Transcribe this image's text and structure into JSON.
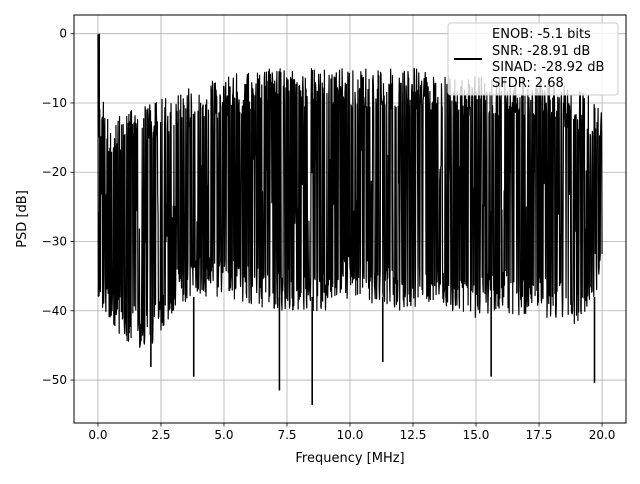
{
  "chart_data": {
    "type": "line",
    "xlabel": "Frequency [MHz]",
    "ylabel": "PSD [dB]",
    "xlim": [
      -0.95,
      20.95
    ],
    "ylim": [
      -56.2,
      2.7
    ],
    "xticks": [
      0.0,
      2.5,
      5.0,
      7.5,
      10.0,
      12.5,
      15.0,
      17.5,
      20.0
    ],
    "xtick_labels": [
      "0.0",
      "2.5",
      "5.0",
      "7.5",
      "10.0",
      "12.5",
      "15.0",
      "17.5",
      "20.0"
    ],
    "yticks": [
      0,
      -10,
      -20,
      -30,
      -40,
      -50
    ],
    "ytick_labels": [
      "0",
      "−10",
      "−20",
      "−30",
      "−40",
      "−50"
    ],
    "grid": true,
    "legend_position": "top-right",
    "series": [
      {
        "color": "#000000",
        "envelope": {
          "x": [
            0.0,
            0.1,
            0.5,
            1.0,
            2.0,
            3.0,
            4.0,
            5.0,
            6.0,
            7.0,
            8.0,
            9.0,
            10.0,
            11.0,
            12.0,
            13.0,
            14.0,
            15.0,
            16.0,
            17.0,
            18.0,
            19.0,
            20.0
          ],
          "upper": [
            0.0,
            -9.0,
            -12.0,
            -11.0,
            -10.0,
            -9.0,
            -7.0,
            -6.0,
            -5.5,
            -5.0,
            -5.0,
            -5.0,
            -5.0,
            -5.0,
            -5.0,
            -5.0,
            -6.0,
            -6.0,
            -6.0,
            -6.0,
            -7.0,
            -8.0,
            -10.0
          ],
          "lower": [
            -42.0,
            -40.0,
            -42.0,
            -44.0,
            -46.0,
            -40.0,
            -38.0,
            -38.0,
            -39.0,
            -40.0,
            -40.0,
            -40.0,
            -38.0,
            -39.0,
            -40.0,
            -39.0,
            -40.0,
            -41.0,
            -40.0,
            -41.0,
            -41.0,
            -42.0,
            -36.0
          ]
        },
        "peaks": [
          {
            "x": 0.05,
            "y": 0.0
          },
          {
            "x": 2.1,
            "y": -48.1
          },
          {
            "x": 3.8,
            "y": -49.5
          },
          {
            "x": 7.2,
            "y": -51.5
          },
          {
            "x": 8.5,
            "y": -53.6
          },
          {
            "x": 11.3,
            "y": -47.4
          },
          {
            "x": 15.6,
            "y": -49.5
          },
          {
            "x": 19.7,
            "y": -50.4
          }
        ]
      }
    ],
    "legend": {
      "lines": [
        "ENOB: -5.1 bits",
        "SNR: -28.91 dB",
        "SINAD: -28.92 dB",
        "SFDR: 2.68"
      ]
    }
  }
}
